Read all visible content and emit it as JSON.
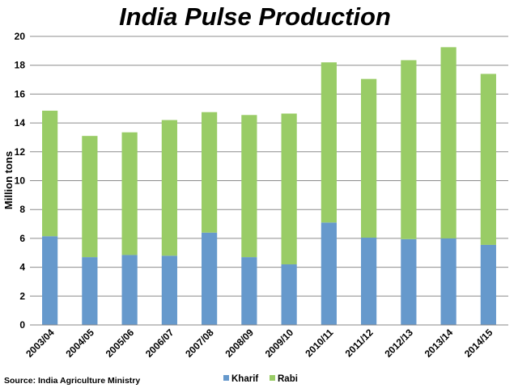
{
  "chart_data": {
    "type": "bar",
    "stacked": true,
    "title": "India Pulse Production",
    "xlabel": "",
    "ylabel": "Million tons",
    "ylim": [
      0,
      20
    ],
    "yticks": [
      0,
      2,
      4,
      6,
      8,
      10,
      12,
      14,
      16,
      18,
      20
    ],
    "grid": true,
    "legend_position": "bottom",
    "categories": [
      "2003/04",
      "2004/05",
      "2005/06",
      "2006/07",
      "2007/08",
      "2008/09",
      "2009/10",
      "2010/11",
      "2011/12",
      "2012/13",
      "2013/14",
      "2014/15"
    ],
    "series": [
      {
        "name": "Kharif",
        "color": "#6699cc",
        "values": [
          6.15,
          4.7,
          4.85,
          4.8,
          6.4,
          4.7,
          4.2,
          7.1,
          6.05,
          5.95,
          6.0,
          5.55
        ]
      },
      {
        "name": "Rabi",
        "color": "#99cc66",
        "values": [
          8.7,
          8.4,
          8.5,
          9.4,
          8.35,
          9.85,
          10.45,
          11.1,
          11.0,
          12.4,
          13.25,
          11.85
        ]
      }
    ],
    "source": "Source: India Agriculture Ministry"
  }
}
